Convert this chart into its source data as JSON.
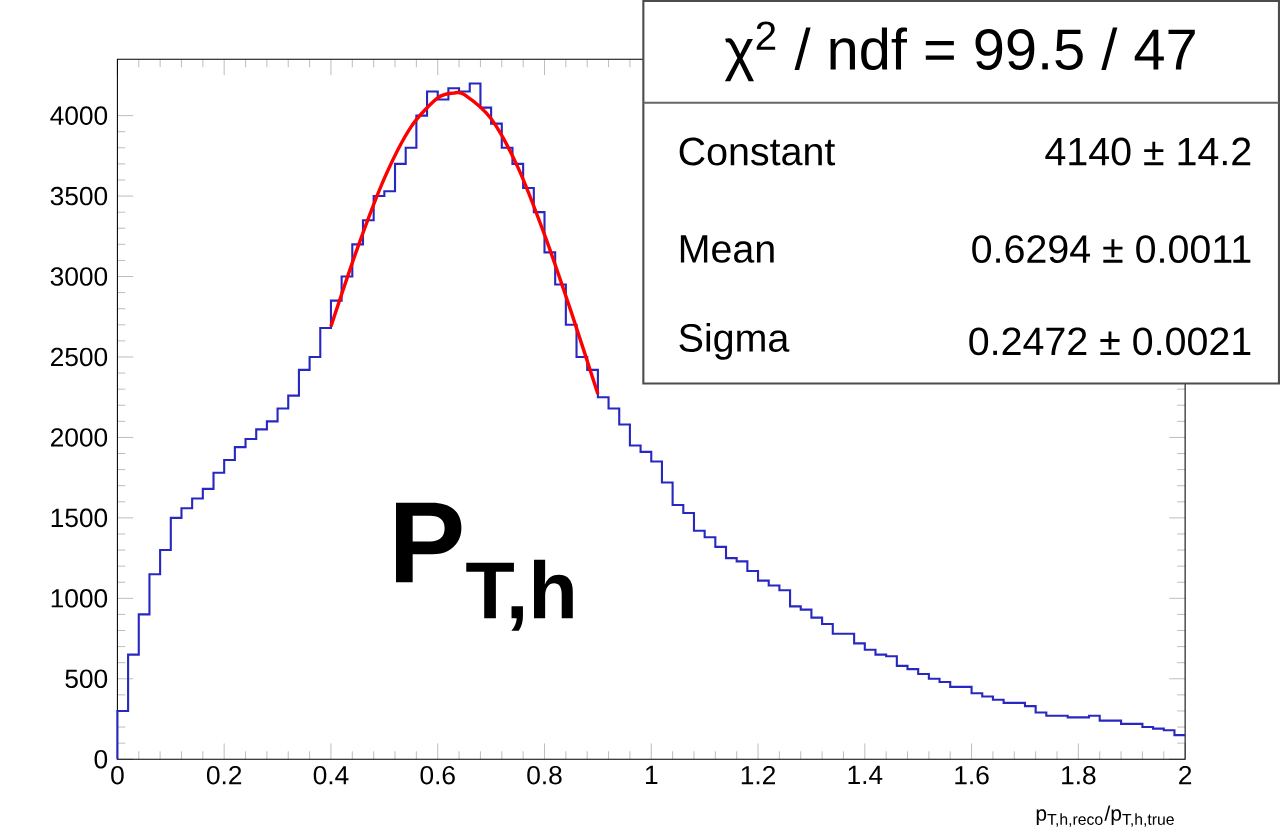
{
  "chart_data": {
    "type": "histogram",
    "xlabel": "p$_{T,h,reco}$/p$_{T,h,true}$",
    "annotations": [
      "P$_{T,h}$",
      "χ$^{2}$ / ndf =  99.5 / 47",
      "Constant",
      "4140 ± 14.2",
      "Mean",
      "0.6294 ± 0.0011",
      "Sigma",
      "0.2472 ± 0.0021"
    ],
    "xlim": [
      0,
      2
    ],
    "ylim": [
      0,
      4350
    ],
    "xticks": [
      0,
      0.2,
      0.4,
      0.6,
      0.8,
      1,
      1.2,
      1.4,
      1.6,
      1.8,
      2
    ],
    "yticks": [
      0,
      500,
      1000,
      1500,
      2000,
      2500,
      3000,
      3500,
      4000
    ],
    "grid": false,
    "series": [
      {
        "color": "#2828c0",
        "bins": [
          0,
          0.02,
          0.04,
          0.06,
          0.08,
          0.1,
          0.12,
          0.14,
          0.16,
          0.18,
          0.2,
          0.22,
          0.24,
          0.26,
          0.28,
          0.3,
          0.32,
          0.34,
          0.36,
          0.38,
          0.4,
          0.42,
          0.44,
          0.46,
          0.48,
          0.5,
          0.52,
          0.54,
          0.56,
          0.58,
          0.6,
          0.62,
          0.64,
          0.66,
          0.68,
          0.7,
          0.72,
          0.74,
          0.76,
          0.78,
          0.8,
          0.82,
          0.84,
          0.86,
          0.88,
          0.9,
          0.92,
          0.94,
          0.96,
          0.98,
          1,
          1.02,
          1.04,
          1.06,
          1.08,
          1.1,
          1.12,
          1.14,
          1.16,
          1.18,
          1.2,
          1.22,
          1.24,
          1.26,
          1.28,
          1.3,
          1.32,
          1.34,
          1.36,
          1.38,
          1.4,
          1.42,
          1.44,
          1.46,
          1.48,
          1.5,
          1.52,
          1.54,
          1.56,
          1.58,
          1.6,
          1.62,
          1.64,
          1.66,
          1.68,
          1.7,
          1.72,
          1.74,
          1.76,
          1.78,
          1.8,
          1.82,
          1.84,
          1.86,
          1.88,
          1.9,
          1.92,
          1.94,
          1.96,
          1.98,
          2
        ],
        "values": [
          300,
          650,
          900,
          1150,
          1300,
          1500,
          1560,
          1620,
          1680,
          1780,
          1860,
          1940,
          1990,
          2050,
          2100,
          2180,
          2260,
          2420,
          2500,
          2680,
          2850,
          3000,
          3200,
          3350,
          3500,
          3530,
          3700,
          3800,
          4000,
          4150,
          4100,
          4170,
          4150,
          4200,
          4050,
          3950,
          3800,
          3700,
          3550,
          3400,
          3150,
          2950,
          2700,
          2500,
          2420,
          2250,
          2180,
          2080,
          1950,
          1910,
          1850,
          1720,
          1580,
          1530,
          1420,
          1380,
          1320,
          1250,
          1230,
          1170,
          1110,
          1080,
          1050,
          950,
          930,
          880,
          840,
          780,
          780,
          720,
          680,
          650,
          640,
          580,
          560,
          530,
          500,
          480,
          450,
          450,
          410,
          390,
          370,
          350,
          350,
          330,
          290,
          270,
          270,
          260,
          260,
          270,
          240,
          240,
          220,
          220,
          200,
          190,
          180,
          150
        ]
      },
      {
        "type": "line",
        "color": "#ff0000",
        "marker": "none",
        "line_style": "solid",
        "x": [
          0.4,
          0.45,
          0.5,
          0.55,
          0.6,
          0.63,
          0.65,
          0.7,
          0.75,
          0.8,
          0.85,
          0.9
        ],
        "values": [
          2690,
          3180,
          3610,
          3930,
          4110,
          4140,
          4130,
          3980,
          3680,
          3260,
          2780,
          2270
        ]
      }
    ]
  }
}
